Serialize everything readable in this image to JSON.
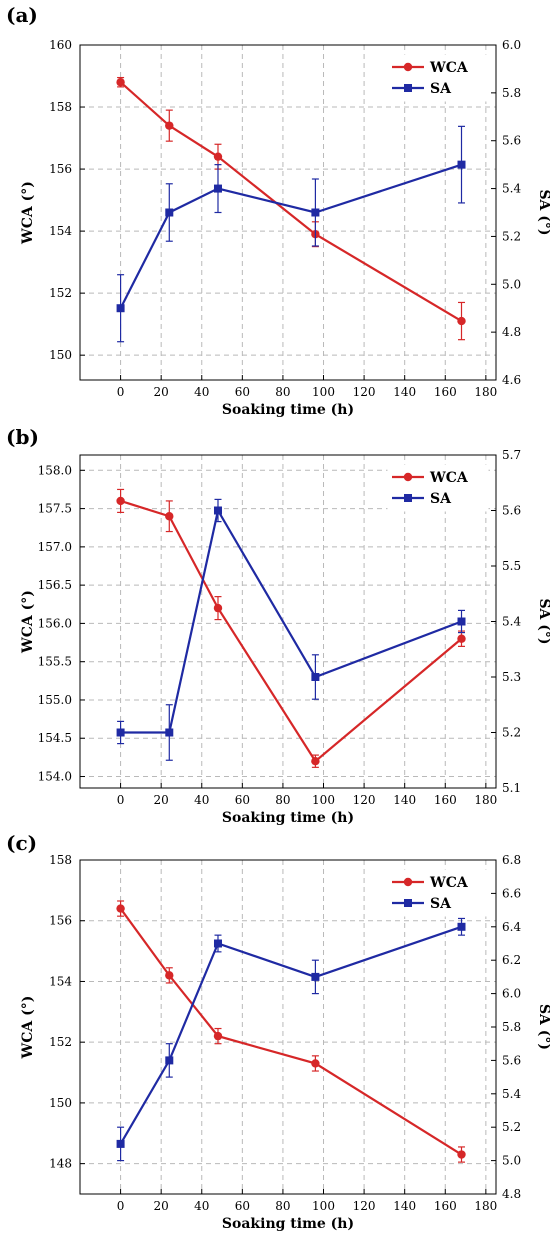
{
  "chart_data": [
    {
      "panel_label": "(a)",
      "type": "line",
      "xlabel": "Soaking time (h)",
      "ylabel_left": "WCA (°)",
      "ylabel_right": "SA (°)",
      "xlim": [
        -20,
        185
      ],
      "xticks": [
        0,
        20,
        40,
        60,
        80,
        100,
        120,
        140,
        160,
        180
      ],
      "ylim_left": [
        149.2,
        160
      ],
      "yticks_left": [
        150,
        152,
        154,
        156,
        158,
        160
      ],
      "ylim_right": [
        4.6,
        6.0
      ],
      "yticks_right": [
        4.6,
        4.8,
        5.0,
        5.2,
        5.4,
        5.6,
        5.8,
        6.0
      ],
      "grid": true,
      "legend_position": "top-right",
      "series": [
        {
          "name": "WCA",
          "axis": "left",
          "color": "#d62728",
          "marker": "circle",
          "x": [
            0,
            24,
            48,
            96,
            168
          ],
          "y": [
            158.8,
            157.4,
            156.4,
            153.9,
            151.1
          ],
          "err": [
            0.15,
            0.5,
            0.4,
            0.4,
            0.6
          ]
        },
        {
          "name": "SA",
          "axis": "right",
          "color": "#1f2aa3",
          "marker": "square",
          "x": [
            0,
            24,
            48,
            96,
            168
          ],
          "y": [
            4.9,
            5.3,
            5.4,
            5.3,
            5.5
          ],
          "err": [
            0.14,
            0.12,
            0.1,
            0.14,
            0.16
          ]
        }
      ]
    },
    {
      "panel_label": "(b)",
      "type": "line",
      "xlabel": "Soaking time (h)",
      "ylabel_left": "WCA (°)",
      "ylabel_right": "SA (°)",
      "xlim": [
        -20,
        185
      ],
      "xticks": [
        0,
        20,
        40,
        60,
        80,
        100,
        120,
        140,
        160,
        180
      ],
      "ylim_left": [
        153.85,
        158.2
      ],
      "yticks_left": [
        154.0,
        154.5,
        155.0,
        155.5,
        156.0,
        156.5,
        157.0,
        157.5,
        158.0
      ],
      "ylim_right": [
        5.1,
        5.7
      ],
      "yticks_right": [
        5.1,
        5.2,
        5.3,
        5.4,
        5.5,
        5.6,
        5.7
      ],
      "grid": true,
      "legend_position": "top-right",
      "series": [
        {
          "name": "WCA",
          "axis": "left",
          "color": "#d62728",
          "marker": "circle",
          "x": [
            0,
            24,
            48,
            96,
            168
          ],
          "y": [
            157.6,
            157.4,
            156.2,
            154.2,
            155.8
          ],
          "err": [
            0.15,
            0.2,
            0.15,
            0.08,
            0.1
          ]
        },
        {
          "name": "SA",
          "axis": "right",
          "color": "#1f2aa3",
          "marker": "square",
          "x": [
            0,
            24,
            48,
            96,
            168
          ],
          "y": [
            5.2,
            5.2,
            5.6,
            5.3,
            5.4
          ],
          "err": [
            0.02,
            0.05,
            0.02,
            0.04,
            0.02
          ]
        }
      ]
    },
    {
      "panel_label": "(c)",
      "type": "line",
      "xlabel": "Soaking time (h)",
      "ylabel_left": "WCA (°)",
      "ylabel_right": "SA (°)",
      "xlim": [
        -20,
        185
      ],
      "xticks": [
        0,
        20,
        40,
        60,
        80,
        100,
        120,
        140,
        160,
        180
      ],
      "ylim_left": [
        147,
        158
      ],
      "yticks_left": [
        148,
        150,
        152,
        154,
        156,
        158
      ],
      "ylim_right": [
        4.8,
        6.8
      ],
      "yticks_right": [
        4.8,
        5.0,
        5.2,
        5.4,
        5.6,
        5.8,
        6.0,
        6.2,
        6.4,
        6.6,
        6.8
      ],
      "grid": true,
      "legend_position": "top-right",
      "series": [
        {
          "name": "WCA",
          "axis": "left",
          "color": "#d62728",
          "marker": "circle",
          "x": [
            0,
            24,
            48,
            96,
            168
          ],
          "y": [
            156.4,
            154.2,
            152.2,
            151.3,
            148.3
          ],
          "err": [
            0.25,
            0.25,
            0.25,
            0.25,
            0.25
          ]
        },
        {
          "name": "SA",
          "axis": "right",
          "color": "#1f2aa3",
          "marker": "square",
          "x": [
            0,
            24,
            48,
            96,
            168
          ],
          "y": [
            5.1,
            5.6,
            6.3,
            6.1,
            6.4
          ],
          "err": [
            0.1,
            0.1,
            0.05,
            0.1,
            0.05
          ]
        }
      ]
    }
  ]
}
